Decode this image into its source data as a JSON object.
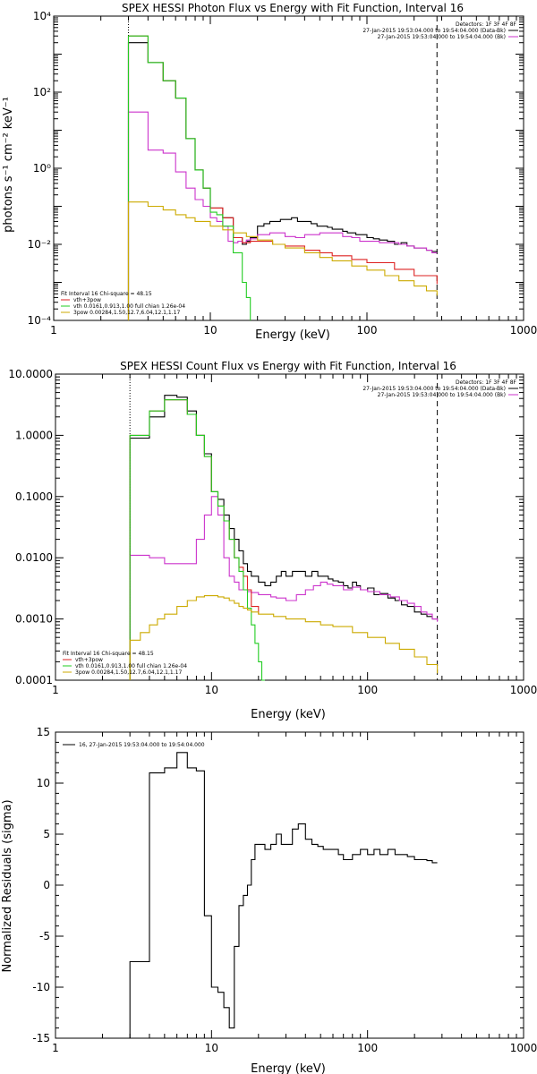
{
  "chart_data": [
    {
      "type": "line",
      "title": "SPEX HESSI Photon Flux vs Energy with Fit Function, Interval 16",
      "xlabel": "Energy (keV)",
      "ylabel": "photons s⁻¹ cm⁻² keV⁻¹",
      "xscale": "log",
      "yscale": "log",
      "xlim": [
        1,
        1000
      ],
      "ylim": [
        0.0001,
        10000
      ],
      "xticks": [
        "1",
        "10",
        "100",
        "1000"
      ],
      "yticks": [
        "10⁻⁴",
        "10⁻²",
        "10⁰",
        "10²",
        "10⁴"
      ],
      "legend_tr": [
        "Detectors: 1F 3F 4F 8F",
        "27-Jan-2015 19:53:04.000 to 19:54:04.000 (Data-Bk)",
        "27-Jan-2015 19:53:04.000 to 19:54:04.000 (Bk)"
      ],
      "legend_bl": [
        "Fit Interval 16   Chi-square = 48.15",
        "vth+3pow",
        "vth 0.0161,0.913,1.00  full chian 1.26e-04",
        "3pow 0.00284,1.50,12.7,6.04,12.1,1.17"
      ],
      "vlines": [
        3,
        280
      ],
      "series": [
        {
          "name": "Data-Bk",
          "color": "#000000",
          "x": [
            3,
            3.5,
            4,
            4.5,
            5,
            5.5,
            6,
            6.5,
            7,
            7.5,
            8,
            8.5,
            9,
            9.5,
            10,
            11,
            12,
            13,
            14,
            15,
            16,
            17,
            18,
            20,
            22,
            24,
            26,
            28,
            30,
            33,
            36,
            40,
            44,
            48,
            52,
            56,
            60,
            65,
            70,
            75,
            80,
            85,
            90,
            100,
            110,
            120,
            135,
            150,
            165,
            180,
            200,
            220,
            240,
            260,
            280
          ],
          "y": [
            2000,
            2000,
            600,
            600,
            200,
            200,
            70,
            70,
            6.0,
            6.0,
            0.9,
            0.9,
            0.3,
            0.3,
            0.09,
            0.09,
            0.05,
            0.05,
            0.015,
            0.015,
            0.01,
            0.012,
            0.015,
            0.03,
            0.035,
            0.04,
            0.04,
            0.045,
            0.045,
            0.05,
            0.04,
            0.04,
            0.035,
            0.03,
            0.03,
            0.028,
            0.025,
            0.025,
            0.022,
            0.02,
            0.02,
            0.018,
            0.018,
            0.015,
            0.014,
            0.013,
            0.012,
            0.01,
            0.011,
            0.009,
            0.008,
            0.008,
            0.007,
            0.0065,
            0.006
          ]
        },
        {
          "name": "Bk",
          "color": "#cc33cc",
          "x": [
            3,
            4,
            5,
            6,
            7,
            8,
            9,
            10,
            11,
            12,
            13,
            14,
            15,
            16,
            17,
            18,
            20,
            22,
            24,
            26,
            30,
            35,
            40,
            45,
            50,
            55,
            60,
            70,
            80,
            90,
            100,
            120,
            140,
            160,
            180,
            200,
            220,
            240,
            260,
            280
          ],
          "y": [
            30,
            3,
            2.5,
            0.8,
            0.3,
            0.15,
            0.1,
            0.05,
            0.04,
            0.03,
            0.012,
            0.011,
            0.012,
            0.011,
            0.013,
            0.014,
            0.018,
            0.018,
            0.02,
            0.02,
            0.016,
            0.015,
            0.018,
            0.018,
            0.02,
            0.02,
            0.02,
            0.016,
            0.015,
            0.012,
            0.012,
            0.011,
            0.011,
            0.01,
            0.009,
            0.008,
            0.008,
            0.007,
            0.006,
            0.006
          ]
        },
        {
          "name": "vth+3pow",
          "color": "#dd2222",
          "x": [
            3,
            3.5,
            4,
            5,
            6,
            7,
            8,
            9,
            10,
            12,
            14,
            16,
            18,
            20,
            25,
            30,
            40,
            50,
            60,
            80,
            100,
            150,
            200,
            280
          ],
          "y": [
            3000,
            3000,
            600,
            200,
            70,
            6,
            0.9,
            0.3,
            0.09,
            0.05,
            0.015,
            0.011,
            0.012,
            0.012,
            0.01,
            0.009,
            0.007,
            0.006,
            0.005,
            0.004,
            0.0033,
            0.0022,
            0.0015,
            0.0009
          ]
        },
        {
          "name": "vth",
          "color": "#22cc22",
          "x": [
            3,
            3.5,
            4,
            4.5,
            5,
            5.5,
            6,
            6.5,
            7,
            7.5,
            8,
            8.5,
            9,
            9.5,
            10,
            11,
            12,
            13,
            14,
            15,
            16,
            17,
            18
          ],
          "y": [
            3000,
            3000,
            600,
            600,
            200,
            200,
            70,
            70,
            6,
            6,
            0.9,
            0.9,
            0.3,
            0.3,
            0.07,
            0.06,
            0.03,
            0.03,
            0.006,
            0.006,
            0.001,
            0.0004,
            0.0001
          ]
        },
        {
          "name": "3pow",
          "color": "#ccaa00",
          "x": [
            3,
            4,
            5,
            6,
            7,
            8,
            10,
            12,
            14,
            17,
            20,
            25,
            30,
            40,
            50,
            60,
            80,
            100,
            130,
            160,
            200,
            240,
            280
          ],
          "y": [
            0.13,
            0.1,
            0.08,
            0.06,
            0.05,
            0.04,
            0.03,
            0.024,
            0.02,
            0.016,
            0.013,
            0.01,
            0.008,
            0.006,
            0.0045,
            0.0037,
            0.0027,
            0.0021,
            0.0015,
            0.0011,
            0.0008,
            0.0006,
            0.00045
          ]
        }
      ]
    },
    {
      "type": "line",
      "title": "SPEX HESSI Count Flux vs Energy with Fit Function, Interval 16",
      "xlabel": "Energy (keV)",
      "ylabel": "",
      "xscale": "log",
      "yscale": "log",
      "xlim": [
        1,
        1000
      ],
      "ylim": [
        0.0001,
        10
      ],
      "xticks": [
        "1",
        "10",
        "100",
        "1000"
      ],
      "yticks": [
        "0.0001",
        "0.0010",
        "0.0100",
        "0.1000",
        "1.0000",
        "10.0000"
      ],
      "legend_tr": [
        "Detectors: 1F 3F 4F 8F",
        "27-Jan-2015 19:53:04.000 to 19:54:04.000 (Data-Bk)",
        "27-Jan-2015 19:53:04.000 to 19:54:04.000 (Bk)"
      ],
      "legend_bl": [
        "Fit Interval 16   Chi-square = 48.15",
        "vth+3pow",
        "vth 0.0161,0.913,1.00  full chian 1.26e-04",
        "3pow 0.00284,1.50,12.7,6.04,12.1,1.17"
      ],
      "vlines": [
        3,
        280
      ],
      "series": [
        {
          "name": "Data-Bk",
          "color": "#000000",
          "x": [
            3,
            3.5,
            4,
            4.5,
            5,
            5.5,
            6,
            6.5,
            7,
            7.5,
            8,
            8.5,
            9,
            9.5,
            10,
            11,
            12,
            13,
            14,
            15,
            16,
            17,
            18,
            20,
            22,
            24,
            26,
            28,
            30,
            33,
            36,
            40,
            44,
            48,
            52,
            56,
            60,
            65,
            70,
            75,
            80,
            85,
            90,
            100,
            110,
            120,
            135,
            150,
            165,
            180,
            200,
            220,
            240,
            260,
            280
          ],
          "y": [
            0.9,
            0.9,
            2.0,
            2.0,
            4.5,
            4.5,
            4.2,
            4.2,
            2.5,
            2.5,
            1.0,
            1.0,
            0.5,
            0.5,
            0.12,
            0.09,
            0.05,
            0.03,
            0.02,
            0.013,
            0.008,
            0.006,
            0.005,
            0.004,
            0.0035,
            0.004,
            0.005,
            0.006,
            0.005,
            0.006,
            0.006,
            0.005,
            0.006,
            0.005,
            0.005,
            0.0045,
            0.0042,
            0.004,
            0.0035,
            0.0032,
            0.004,
            0.0035,
            0.003,
            0.0032,
            0.0025,
            0.0026,
            0.0022,
            0.002,
            0.0017,
            0.0016,
            0.0013,
            0.0012,
            0.0011,
            0.001,
            0.001
          ]
        },
        {
          "name": "Bk",
          "color": "#cc33cc",
          "x": [
            3,
            4,
            5,
            6,
            7,
            8,
            9,
            10,
            11,
            12,
            13,
            14,
            15,
            16,
            17,
            18,
            20,
            22,
            24,
            26,
            30,
            35,
            40,
            45,
            50,
            55,
            60,
            70,
            80,
            90,
            100,
            120,
            140,
            160,
            180,
            200,
            220,
            240,
            260,
            280
          ],
          "y": [
            0.011,
            0.01,
            0.008,
            0.008,
            0.008,
            0.02,
            0.05,
            0.1,
            0.05,
            0.01,
            0.005,
            0.004,
            0.003,
            0.003,
            0.0028,
            0.0027,
            0.0025,
            0.0025,
            0.0023,
            0.0022,
            0.002,
            0.0025,
            0.003,
            0.0035,
            0.004,
            0.0037,
            0.0035,
            0.003,
            0.0033,
            0.003,
            0.0028,
            0.0025,
            0.0023,
            0.002,
            0.0018,
            0.0016,
            0.0013,
            0.0012,
            0.001,
            0.0009
          ]
        },
        {
          "name": "vth+3pow",
          "color": "#dd2222",
          "x": [
            3,
            3.5,
            4,
            4.5,
            5,
            5.5,
            6,
            6.5,
            7,
            7.5,
            8,
            8.5,
            9,
            9.5,
            10,
            11,
            12,
            13,
            14,
            15,
            16,
            17,
            18,
            20
          ],
          "y": [
            1.0,
            1.0,
            2.5,
            2.5,
            3.8,
            3.8,
            3.8,
            3.8,
            2.2,
            2.2,
            1.0,
            1.0,
            0.45,
            0.45,
            0.12,
            0.07,
            0.04,
            0.02,
            0.01,
            0.007,
            0.005,
            0.003,
            0.0016,
            0.0012
          ]
        },
        {
          "name": "vth",
          "color": "#22cc22",
          "x": [
            3,
            3.5,
            4,
            4.5,
            5,
            5.5,
            6,
            6.5,
            7,
            7.5,
            8,
            8.5,
            9,
            9.5,
            10,
            11,
            12,
            13,
            14,
            15,
            16,
            17,
            18,
            19,
            20,
            21,
            22
          ],
          "y": [
            1.0,
            1.0,
            2.5,
            2.5,
            3.8,
            3.8,
            3.8,
            3.8,
            2.2,
            2.2,
            1.0,
            1.0,
            0.45,
            0.45,
            0.12,
            0.07,
            0.04,
            0.02,
            0.01,
            0.006,
            0.003,
            0.0015,
            0.0008,
            0.0004,
            0.0002,
            0.0001,
            0.0001
          ]
        },
        {
          "name": "3pow",
          "color": "#ccaa00",
          "x": [
            3,
            3.5,
            4,
            4.5,
            5,
            6,
            7,
            8,
            9,
            10,
            11,
            12,
            13,
            14,
            15,
            16,
            17,
            18,
            20,
            22,
            25,
            30,
            40,
            50,
            60,
            80,
            100,
            130,
            160,
            200,
            240,
            280
          ],
          "y": [
            0.00045,
            0.0006,
            0.0008,
            0.001,
            0.0012,
            0.0016,
            0.002,
            0.0023,
            0.0024,
            0.0024,
            0.0023,
            0.0022,
            0.002,
            0.0018,
            0.0016,
            0.0015,
            0.0014,
            0.0013,
            0.0012,
            0.0012,
            0.0011,
            0.001,
            0.0009,
            0.0008,
            0.00075,
            0.0006,
            0.0005,
            0.0004,
            0.00032,
            0.00024,
            0.00018,
            0.00013
          ]
        }
      ]
    },
    {
      "type": "line",
      "title": "",
      "xlabel": "Energy (keV)",
      "ylabel": "Normalized Residuals (sigma)",
      "xscale": "log",
      "yscale": "linear",
      "xlim": [
        1,
        1000
      ],
      "ylim": [
        -15,
        15
      ],
      "xticks": [
        "1",
        "10",
        "100",
        "1000"
      ],
      "yticks": [
        "-15",
        "-10",
        "-5",
        "0",
        "5",
        "10",
        "15"
      ],
      "legend_tl": "16, 27-Jan-2015 19:53:04.000 to 19:54:04.000",
      "series": [
        {
          "name": "16, 27-Jan-2015 19:53:04.000 to 19:54:04.000",
          "color": "#000000",
          "x": [
            3,
            3.5,
            4,
            4.5,
            5,
            5.5,
            6,
            6.5,
            7,
            7.5,
            8,
            8.5,
            9,
            9.5,
            10,
            11,
            12,
            13,
            14,
            15,
            16,
            17,
            18,
            19,
            20,
            22,
            24,
            26,
            28,
            30,
            33,
            36,
            40,
            44,
            48,
            52,
            56,
            60,
            65,
            70,
            75,
            80,
            85,
            90,
            100,
            110,
            120,
            135,
            150,
            165,
            180,
            200,
            220,
            240,
            260,
            280
          ],
          "y": [
            -7.5,
            -7.5,
            11,
            11,
            11.5,
            11.5,
            13,
            13,
            11.5,
            11.5,
            11.2,
            11.2,
            -3,
            -3,
            -10,
            -10.5,
            -12,
            -14,
            -6,
            -2,
            -1,
            0,
            2.5,
            4,
            4,
            3.5,
            4,
            5,
            4,
            4,
            5.5,
            6,
            4.5,
            4,
            3.8,
            3.5,
            3.5,
            3.5,
            3,
            2.5,
            2.5,
            3,
            3,
            3.5,
            3,
            3.5,
            3,
            3.5,
            3,
            3,
            2.8,
            2.5,
            2.5,
            2.4,
            2.2,
            2.2
          ]
        }
      ]
    }
  ]
}
